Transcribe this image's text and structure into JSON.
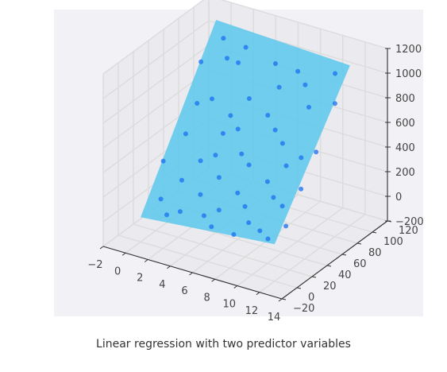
{
  "caption": "Linear regression with two predictor variables",
  "colors": {
    "background": "#f2f2f6",
    "pane": "#ebebef",
    "grid": "#dcdcdc",
    "plane": "#5bc8ec",
    "points": "#1a6ff0"
  },
  "chart_data": {
    "type": "scatter",
    "projection": "3d",
    "title": "",
    "xlabel": "",
    "ylabel": "",
    "zlabel": "",
    "grid": true,
    "xlim": [
      -2,
      14
    ],
    "ylim": [
      -20,
      120
    ],
    "zlim": [
      -200,
      1200
    ],
    "x_ticks": [
      "−2",
      "0",
      "2",
      "4",
      "6",
      "8",
      "10",
      "12",
      "14"
    ],
    "y_ticks": [
      "−20",
      "0",
      "20",
      "40",
      "60",
      "80",
      "100",
      "120"
    ],
    "z_ticks": [
      "−200",
      "0",
      "200",
      "400",
      "600",
      "800",
      "1000",
      "1200"
    ],
    "plane": {
      "x_range": [
        0,
        12
      ],
      "y_range": [
        0,
        100
      ],
      "z_corners": {
        "x0_y0": 0,
        "x12_y0": 100,
        "x0_y100": 1150,
        "x12_y100": 1100
      }
    },
    "series": [
      {
        "type": "scatter",
        "points": [
          [
            1,
            12,
            120
          ],
          [
            3,
            8,
            90
          ],
          [
            6,
            5,
            60
          ],
          [
            9,
            10,
            150
          ],
          [
            11,
            6,
            90
          ],
          [
            2,
            25,
            240
          ],
          [
            5,
            30,
            320
          ],
          [
            8,
            20,
            210
          ],
          [
            10,
            28,
            300
          ],
          [
            12,
            15,
            180
          ],
          [
            1,
            45,
            500
          ],
          [
            4,
            50,
            560
          ],
          [
            7,
            40,
            430
          ],
          [
            9,
            55,
            590
          ],
          [
            12,
            35,
            390
          ],
          [
            2,
            65,
            720
          ],
          [
            5,
            70,
            780
          ],
          [
            8,
            60,
            650
          ],
          [
            10,
            75,
            820
          ],
          [
            11,
            50,
            550
          ],
          [
            0,
            80,
            900
          ],
          [
            3,
            85,
            950
          ],
          [
            6,
            90,
            1000
          ],
          [
            9,
            85,
            930
          ],
          [
            12,
            80,
            880
          ],
          [
            1,
            95,
            1050
          ],
          [
            4,
            60,
            660
          ],
          [
            7,
            25,
            270
          ],
          [
            10,
            45,
            480
          ],
          [
            6,
            15,
            150
          ],
          [
            2,
            5,
            50
          ],
          [
            4,
            20,
            200
          ],
          [
            7,
            65,
            720
          ],
          [
            11,
            95,
            1030
          ],
          [
            3,
            35,
            380
          ],
          [
            8,
            90,
            990
          ],
          [
            5,
            10,
            100
          ],
          [
            9,
            35,
            370
          ],
          [
            12,
            55,
            600
          ],
          [
            0,
            30,
            320
          ],
          [
            6,
            45,
            470
          ],
          [
            3,
            95,
            1030
          ],
          [
            10,
            10,
            110
          ],
          [
            1,
            60,
            680
          ],
          [
            7,
            80,
            880
          ],
          [
            4,
            40,
            430
          ],
          [
            11,
            25,
            270
          ],
          [
            8,
            5,
            50
          ],
          [
            2,
            85,
            960
          ],
          [
            5,
            55,
            600
          ]
        ]
      }
    ]
  }
}
